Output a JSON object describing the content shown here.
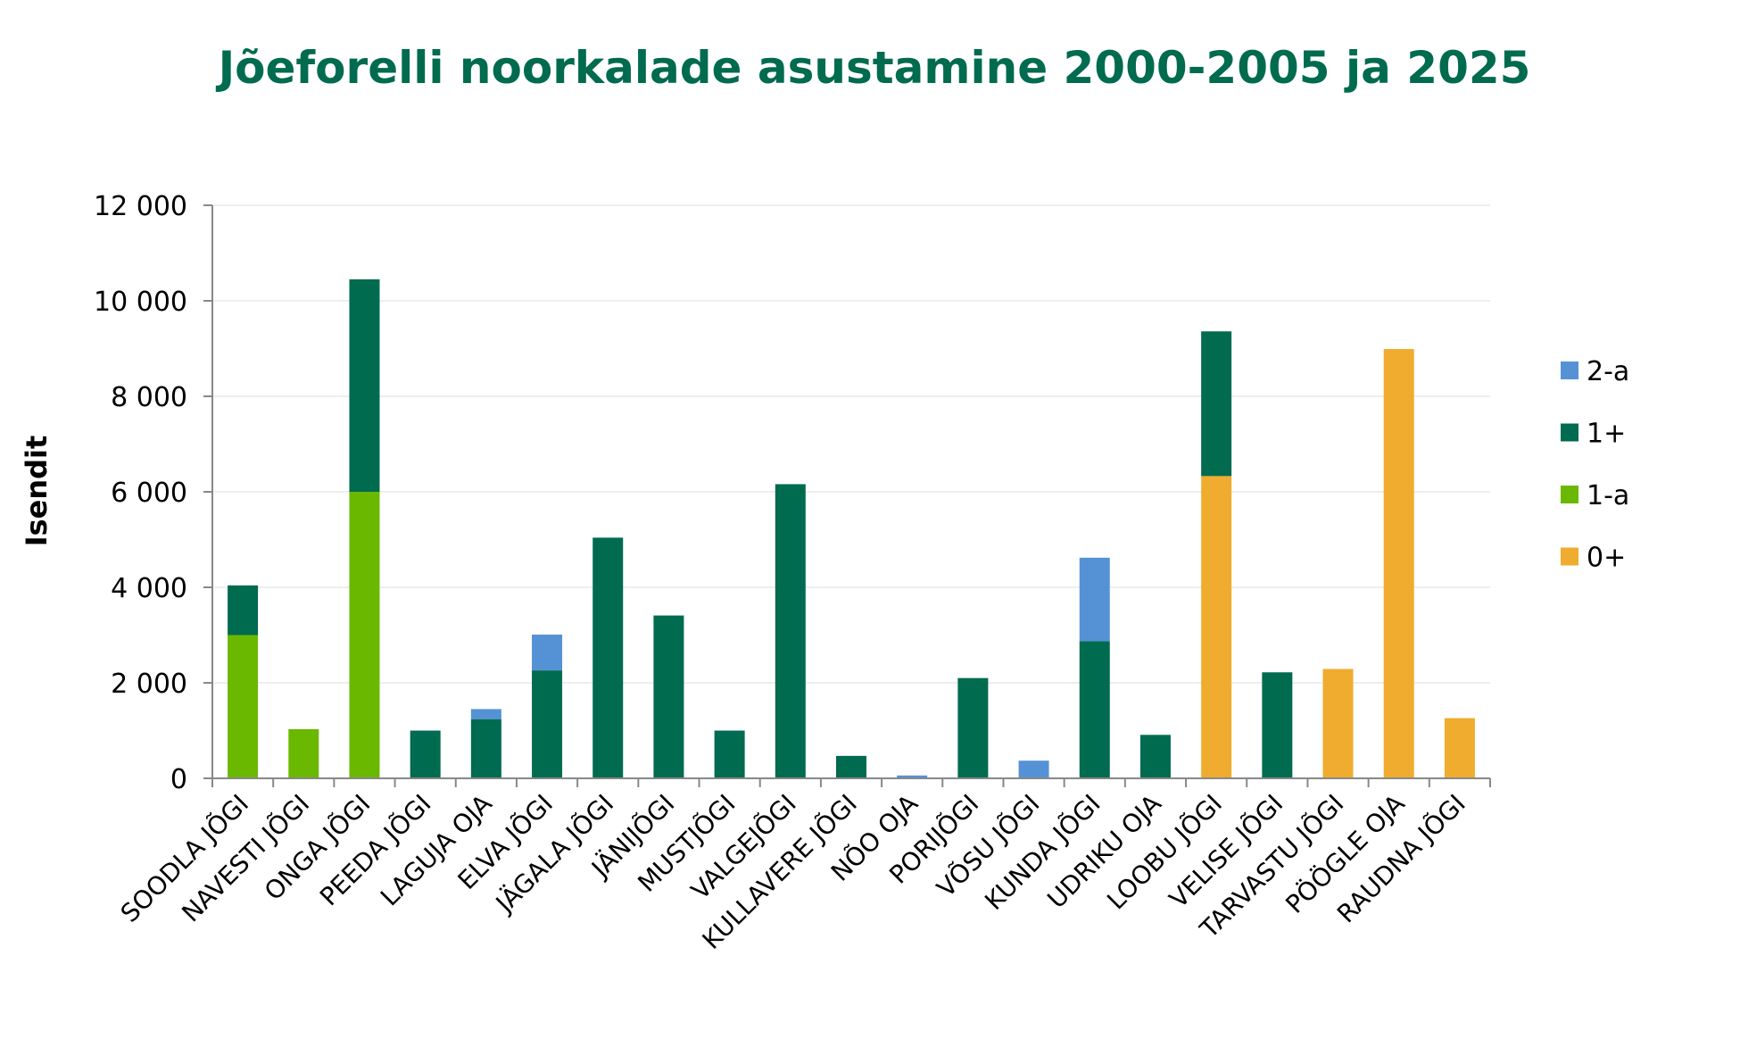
{
  "chart_data": {
    "type": "bar",
    "stacked": true,
    "title": "Jõeforelli noorkalade asustamine 2000-2005 ja 2025",
    "xlabel": "",
    "ylabel": "Isendit",
    "ylim": [
      0,
      12000
    ],
    "yticks": [
      0,
      2000,
      4000,
      6000,
      8000,
      10000,
      12000
    ],
    "ytick_labels": [
      "0",
      "2 000",
      "4 000",
      "6 000",
      "8 000",
      "10 000",
      "12 000"
    ],
    "grid": true,
    "legend_position": "right",
    "categories": [
      "SOODLA JÕGI",
      "NAVESTI JÕGI",
      "ONGA JÕGI",
      "PEEDA JÕGI",
      "LAGUJA OJA",
      "ELVA JÕGI",
      "JÄGALA JÕGI",
      "JÄNIJÕGI",
      "MUSTJÕGI",
      "VALGEJÕGI",
      "KULLAVERE JÕGI",
      "NÕO OJA",
      "PORIJÕGI",
      "VÕSU JÕGI",
      "KUNDA JÕGI",
      "UDRIKU OJA",
      "LOOBU JÕGI",
      "VELISE JÕGI",
      "TARVASTU JÕGI",
      "PÖÖGLE OJA",
      "RAUDNA JÕGI"
    ],
    "series": [
      {
        "name": "0+",
        "color": "#efac2e",
        "values": [
          0,
          0,
          0,
          0,
          0,
          0,
          0,
          0,
          0,
          0,
          0,
          0,
          0,
          0,
          0,
          0,
          6330,
          0,
          2290,
          8990,
          1260
        ]
      },
      {
        "name": "1-a",
        "color": "#6ab800",
        "values": [
          3000,
          1030,
          6000,
          0,
          0,
          0,
          0,
          0,
          0,
          0,
          0,
          0,
          0,
          0,
          0,
          0,
          0,
          0,
          0,
          0,
          0
        ]
      },
      {
        "name": "1+",
        "color": "#006b4f",
        "values": [
          1040,
          0,
          4450,
          1000,
          1240,
          2260,
          5040,
          3410,
          1000,
          6160,
          470,
          0,
          2100,
          0,
          2870,
          910,
          3030,
          2220,
          0,
          0,
          0
        ]
      },
      {
        "name": "2-a",
        "color": "#5592d5",
        "values": [
          0,
          0,
          0,
          0,
          210,
          750,
          0,
          0,
          0,
          0,
          0,
          60,
          0,
          370,
          1750,
          0,
          0,
          0,
          0,
          0,
          0
        ]
      }
    ],
    "legend_order": [
      "2-a",
      "1+",
      "1-a",
      "0+"
    ],
    "title_color": "#006b4f"
  }
}
